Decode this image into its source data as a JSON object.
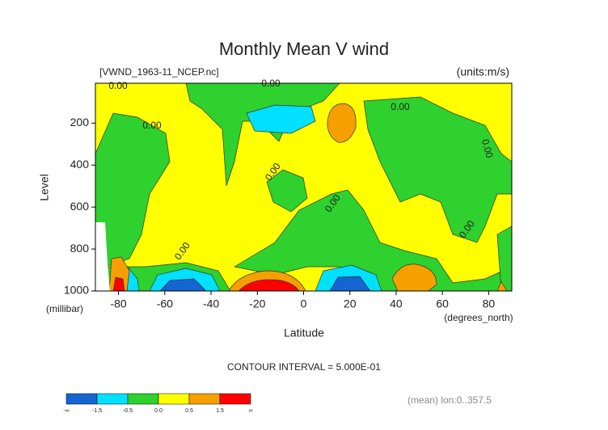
{
  "chart_data": {
    "type": "contour",
    "title": "Monthly Mean V wind",
    "subtitle_left": "[VWND_1963-11_NCEP.nc]",
    "subtitle_right": "(units:m/s)",
    "y_label": "Level",
    "y_unit": "(millibar)",
    "x_label": "Latitude",
    "x_unit": "(degrees_north)",
    "contour_interval": "CONTOUR INTERVAL = 5.000E-01",
    "footnote": "(mean) lon:0..357.5",
    "xlim": [
      -90,
      90
    ],
    "xticks": [
      -80,
      -60,
      -40,
      -20,
      0,
      20,
      40,
      60,
      80
    ],
    "ylim": [
      1000,
      10
    ],
    "yticks": [
      200,
      400,
      600,
      800,
      1000
    ],
    "contour_labels": [
      "0.00",
      "0.00",
      "0.00",
      "0.00",
      "0.00",
      "0.00",
      "0.00",
      "0.00",
      "0.00"
    ],
    "colorbar": {
      "labels": [
        "-∞",
        "-1.5",
        "-0.5",
        "0.0",
        "0.5",
        "1.5",
        "∞"
      ],
      "colors": [
        "#1464d2",
        "#00e0ff",
        "#2ed12e",
        "#ffff00",
        "#f5a000",
        "#ff0000"
      ]
    }
  }
}
